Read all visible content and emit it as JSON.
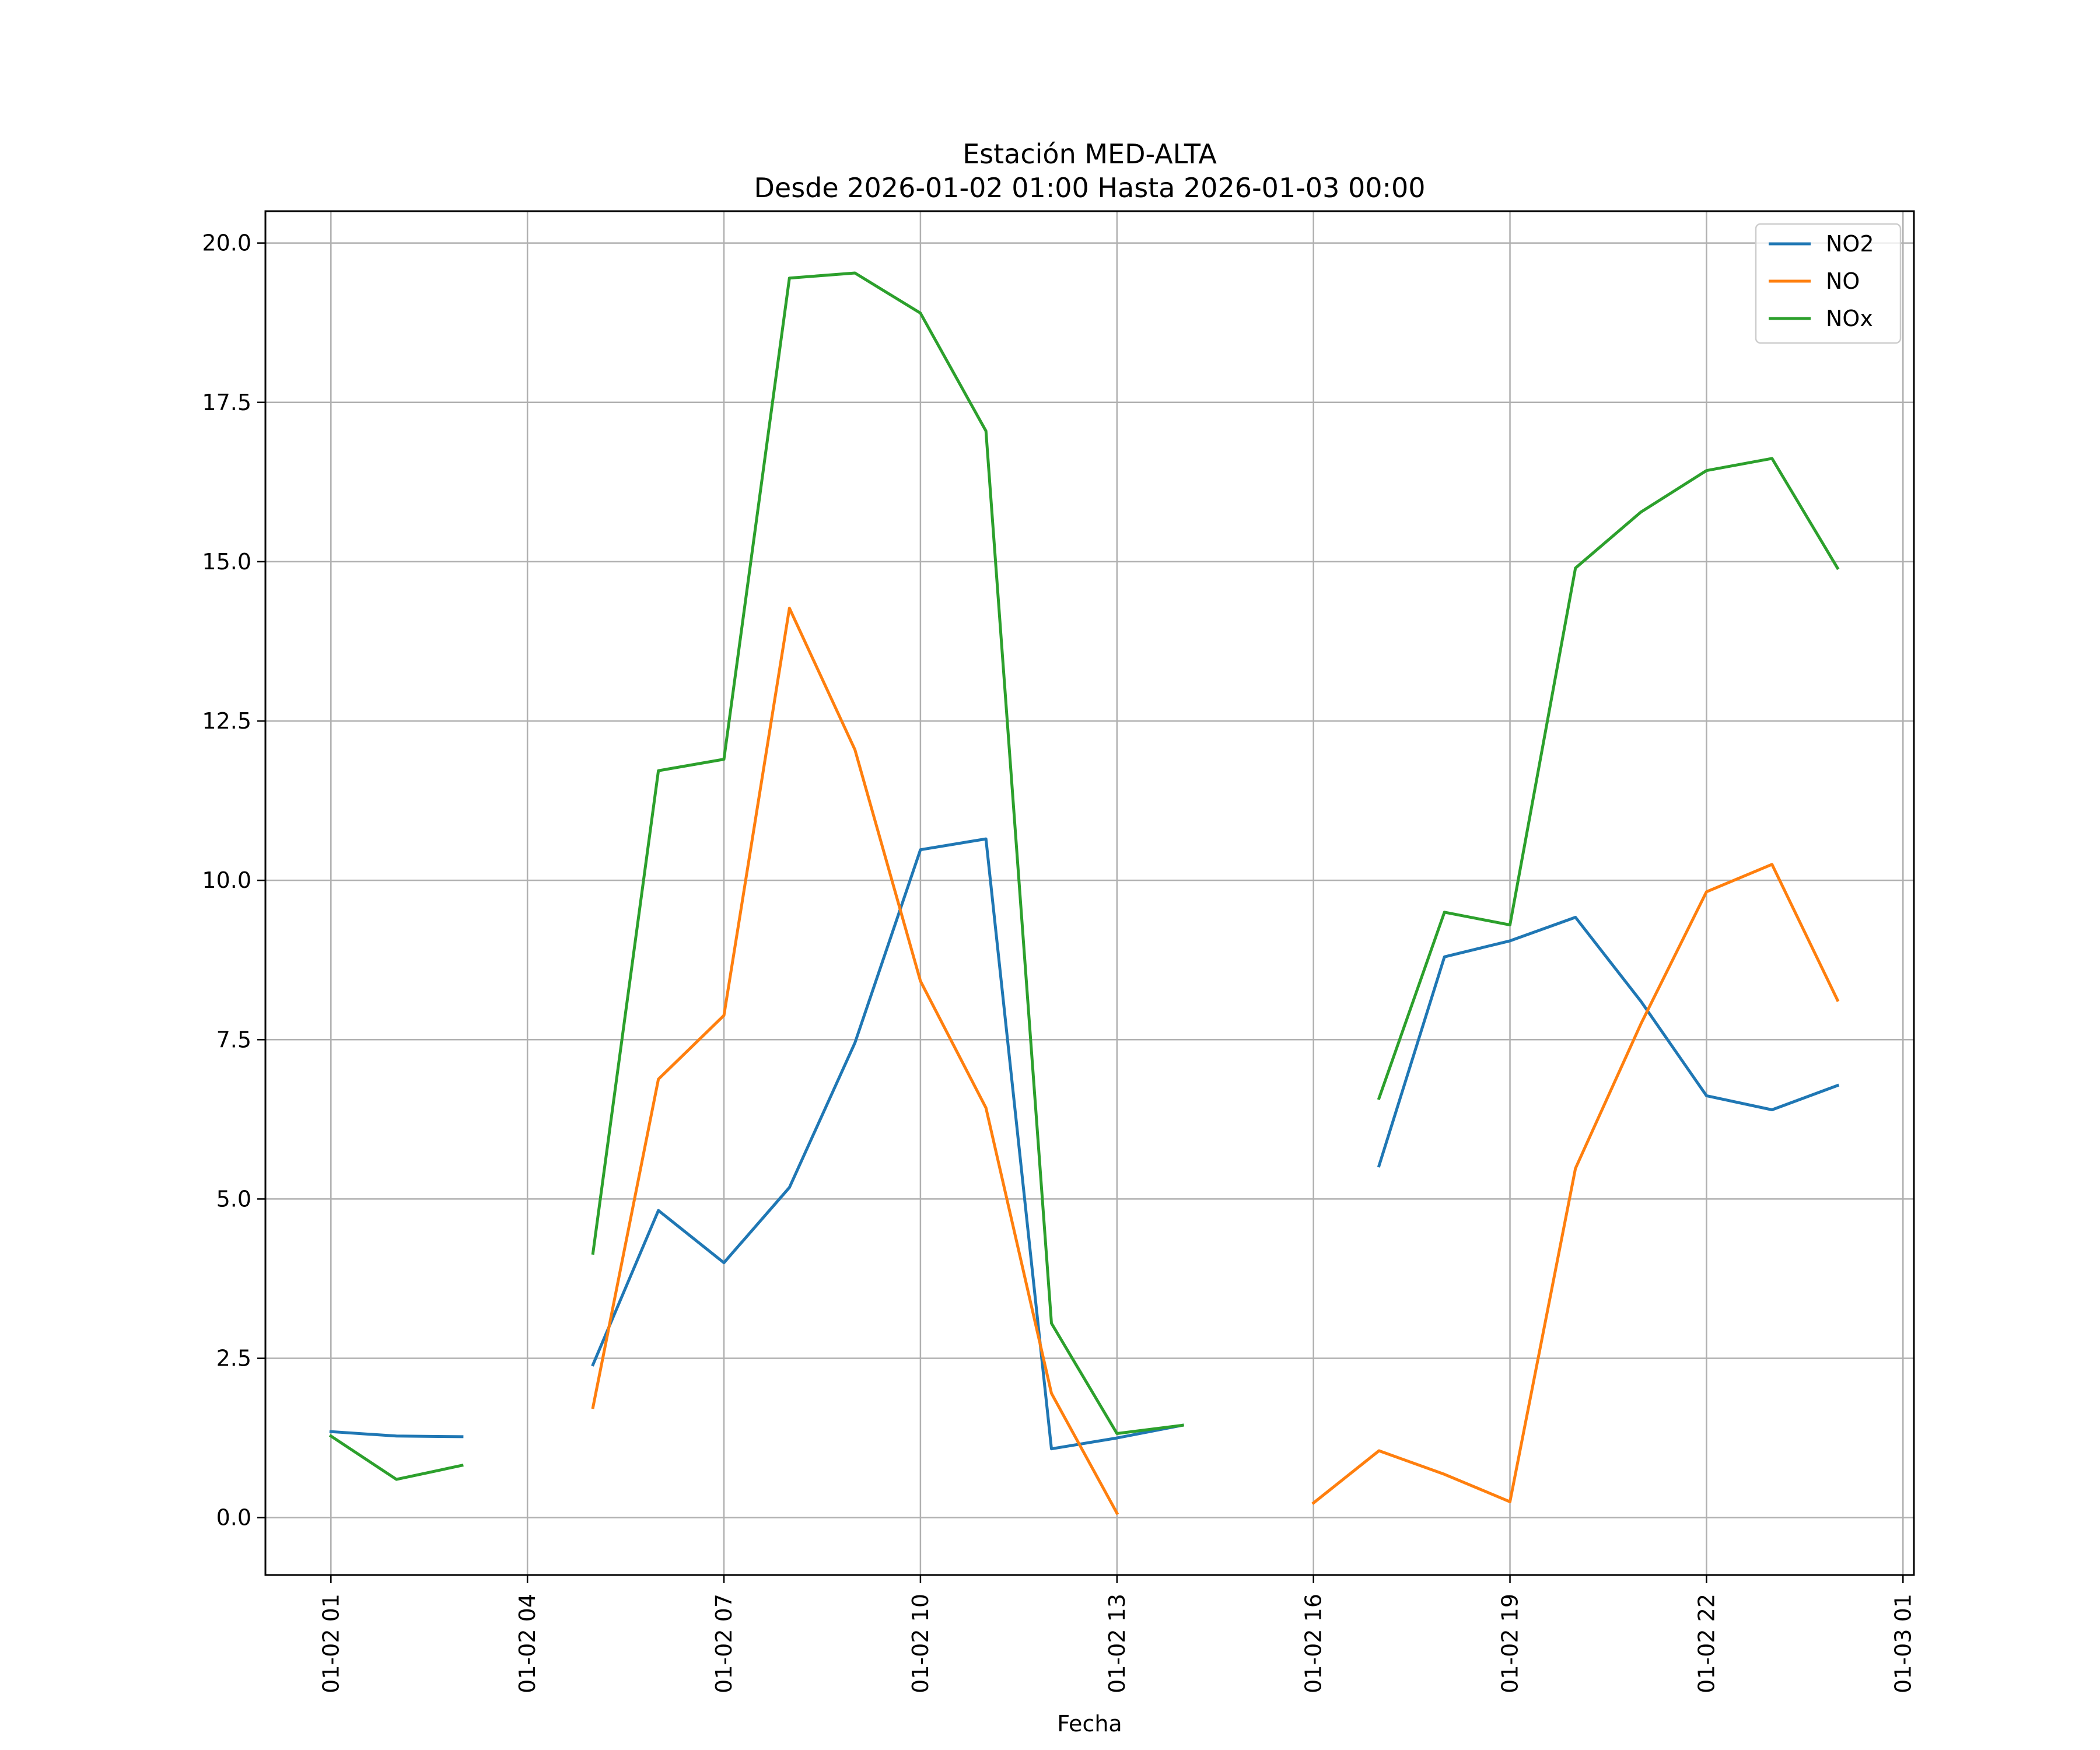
{
  "chart_data": {
    "type": "line",
    "title": "Estación MED-ALTA",
    "subtitle": "Desde 2026-01-02 01:00 Hasta 2026-01-03 00:00",
    "xlabel": "Fecha",
    "ylabel": "",
    "x": [
      "2026-01-02 01:00",
      "2026-01-02 02:00",
      "2026-01-02 03:00",
      "2026-01-02 04:00",
      "2026-01-02 05:00",
      "2026-01-02 06:00",
      "2026-01-02 07:00",
      "2026-01-02 08:00",
      "2026-01-02 09:00",
      "2026-01-02 10:00",
      "2026-01-02 11:00",
      "2026-01-02 12:00",
      "2026-01-02 13:00",
      "2026-01-02 14:00",
      "2026-01-02 15:00",
      "2026-01-02 16:00",
      "2026-01-02 17:00",
      "2026-01-02 18:00",
      "2026-01-02 19:00",
      "2026-01-02 20:00",
      "2026-01-02 21:00",
      "2026-01-02 22:00",
      "2026-01-02 23:00",
      "2026-01-03 00:00"
    ],
    "x_ticks": [
      {
        "label": "01-02 01",
        "value": "2026-01-02 01:00"
      },
      {
        "label": "01-02 04",
        "value": "2026-01-02 04:00"
      },
      {
        "label": "01-02 07",
        "value": "2026-01-02 07:00"
      },
      {
        "label": "01-02 10",
        "value": "2026-01-02 10:00"
      },
      {
        "label": "01-02 13",
        "value": "2026-01-02 13:00"
      },
      {
        "label": "01-02 16",
        "value": "2026-01-02 16:00"
      },
      {
        "label": "01-02 19",
        "value": "2026-01-02 19:00"
      },
      {
        "label": "01-02 22",
        "value": "2026-01-02 22:00"
      },
      {
        "label": "01-03 01",
        "value": "2026-01-03 01:00"
      }
    ],
    "y_ticks": [
      "0.0",
      "2.5",
      "5.0",
      "7.5",
      "10.0",
      "12.5",
      "15.0",
      "17.5",
      "20.0"
    ],
    "xlim": [
      "2026-01-02 00:00",
      "2026-01-03 01:10"
    ],
    "ylim": [
      -0.9,
      20.5
    ],
    "grid": true,
    "legend": "top-right",
    "series": [
      {
        "name": "NO2",
        "color": "#1f77b4",
        "values": [
          1.35,
          1.28,
          1.27,
          null,
          2.4,
          4.82,
          4.0,
          5.18,
          7.45,
          10.48,
          10.65,
          1.08,
          1.25,
          1.45,
          null,
          null,
          5.52,
          8.8,
          9.05,
          9.42,
          8.1,
          6.62,
          6.4,
          6.78
        ]
      },
      {
        "name": "NO",
        "color": "#ff7f0e",
        "values": [
          null,
          null,
          null,
          null,
          1.73,
          6.88,
          7.88,
          14.27,
          12.05,
          8.42,
          6.43,
          1.95,
          0.07,
          null,
          null,
          0.23,
          1.05,
          0.68,
          0.25,
          5.48,
          7.75,
          9.82,
          10.25,
          8.12
        ]
      },
      {
        "name": "NOx",
        "color": "#2ca02c",
        "values": [
          1.28,
          0.6,
          0.82,
          null,
          4.15,
          11.72,
          11.9,
          19.45,
          19.53,
          18.9,
          17.05,
          3.05,
          1.32,
          1.45,
          null,
          null,
          6.58,
          9.5,
          9.3,
          14.9,
          15.78,
          16.43,
          16.62,
          14.9
        ]
      }
    ]
  }
}
